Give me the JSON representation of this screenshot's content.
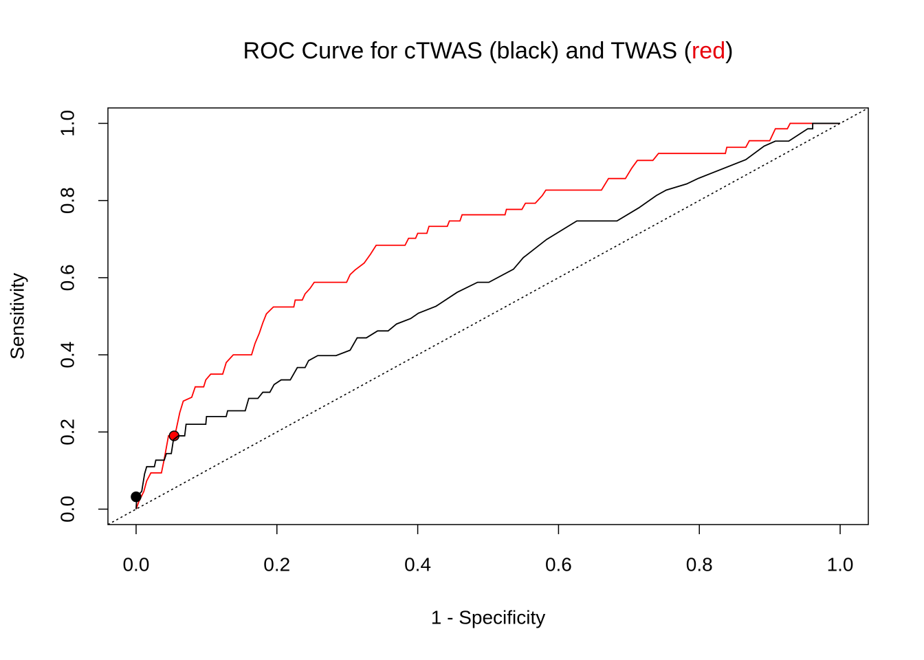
{
  "chart_data": {
    "type": "line",
    "title_parts": [
      {
        "text": "ROC Curve for cTWAS (black) and TWAS (",
        "color": "#000000"
      },
      {
        "text": "red",
        "color": "#e8000b"
      },
      {
        "text": ")",
        "color": "#000000"
      }
    ],
    "x_label": "1 - Specificity",
    "y_label": "Sensitivity",
    "xlim": [
      -0.04,
      1.04
    ],
    "ylim": [
      -0.04,
      1.04
    ],
    "xticks": [
      {
        "value": 0,
        "label": "0.0"
      },
      0.2,
      0.4,
      0.6,
      0.8,
      {
        "value": 1,
        "label": "1.0"
      }
    ],
    "yticks": [
      {
        "value": 0,
        "label": "0.0"
      },
      0.2,
      0.4,
      0.6,
      0.8,
      {
        "value": 1,
        "label": "1.0"
      }
    ],
    "diagonal": true,
    "series": [
      {
        "name": "TWAS",
        "color": "#ff0000",
        "x": [
          0,
          0.004,
          0.011,
          0.015,
          0.021,
          0.036,
          0.04,
          0.043,
          0.046,
          0.055,
          0.062,
          0.067,
          0.079,
          0.084,
          0.096,
          0.099,
          0.106,
          0.123,
          0.128,
          0.138,
          0.164,
          0.169,
          0.175,
          0.18,
          0.185,
          0.195,
          0.224,
          0.226,
          0.236,
          0.24,
          0.247,
          0.253,
          0.299,
          0.304,
          0.311,
          0.324,
          0.333,
          0.341,
          0.382,
          0.387,
          0.397,
          0.4,
          0.413,
          0.416,
          0.442,
          0.445,
          0.46,
          0.463,
          0.524,
          0.526,
          0.548,
          0.553,
          0.567,
          0.577,
          0.582,
          0.661,
          0.671,
          0.695,
          0.704,
          0.712,
          0.734,
          0.742,
          0.837,
          0.839,
          0.866,
          0.871,
          0.9,
          0.908,
          0.925,
          0.929,
          1
        ],
        "values": [
          0,
          0.02,
          0.046,
          0.073,
          0.094,
          0.094,
          0.13,
          0.16,
          0.19,
          0.19,
          0.25,
          0.28,
          0.29,
          0.317,
          0.317,
          0.335,
          0.35,
          0.35,
          0.38,
          0.4,
          0.4,
          0.43,
          0.456,
          0.483,
          0.506,
          0.524,
          0.524,
          0.542,
          0.542,
          0.558,
          0.572,
          0.588,
          0.588,
          0.608,
          0.62,
          0.638,
          0.661,
          0.684,
          0.684,
          0.702,
          0.702,
          0.715,
          0.715,
          0.733,
          0.733,
          0.747,
          0.747,
          0.763,
          0.763,
          0.777,
          0.777,
          0.793,
          0.793,
          0.813,
          0.827,
          0.827,
          0.857,
          0.857,
          0.884,
          0.904,
          0.904,
          0.922,
          0.922,
          0.938,
          0.938,
          0.955,
          0.955,
          0.986,
          0.986,
          1,
          1
        ],
        "point": {
          "x": 0.054,
          "y": 0.19
        }
      },
      {
        "name": "cTWAS",
        "color": "#000000",
        "x": [
          0,
          0.001,
          0.008,
          0.012,
          0.015,
          0.026,
          0.028,
          0.04,
          0.043,
          0.05,
          0.053,
          0.06,
          0.069,
          0.071,
          0.099,
          0.1,
          0.128,
          0.13,
          0.155,
          0.16,
          0.173,
          0.18,
          0.19,
          0.196,
          0.206,
          0.219,
          0.229,
          0.24,
          0.245,
          0.258,
          0.284,
          0.304,
          0.314,
          0.327,
          0.343,
          0.358,
          0.37,
          0.39,
          0.401,
          0.426,
          0.456,
          0.485,
          0.501,
          0.536,
          0.55,
          0.583,
          0.626,
          0.683,
          0.714,
          0.739,
          0.753,
          0.782,
          0.798,
          0.866,
          0.892,
          0.908,
          0.927,
          0.954,
          0.961,
          0.961,
          1
        ],
        "values": [
          0,
          0.032,
          0.046,
          0.091,
          0.11,
          0.11,
          0.127,
          0.127,
          0.144,
          0.144,
          0.18,
          0.19,
          0.19,
          0.22,
          0.22,
          0.24,
          0.24,
          0.255,
          0.255,
          0.287,
          0.287,
          0.303,
          0.303,
          0.323,
          0.335,
          0.335,
          0.367,
          0.367,
          0.385,
          0.398,
          0.398,
          0.412,
          0.444,
          0.444,
          0.462,
          0.462,
          0.48,
          0.494,
          0.508,
          0.526,
          0.562,
          0.588,
          0.588,
          0.622,
          0.652,
          0.699,
          0.747,
          0.747,
          0.781,
          0.813,
          0.827,
          0.843,
          0.857,
          0.906,
          0.941,
          0.954,
          0.954,
          0.986,
          0.986,
          1,
          1
        ],
        "point": {
          "x": 0,
          "y": 0.032
        }
      }
    ]
  }
}
